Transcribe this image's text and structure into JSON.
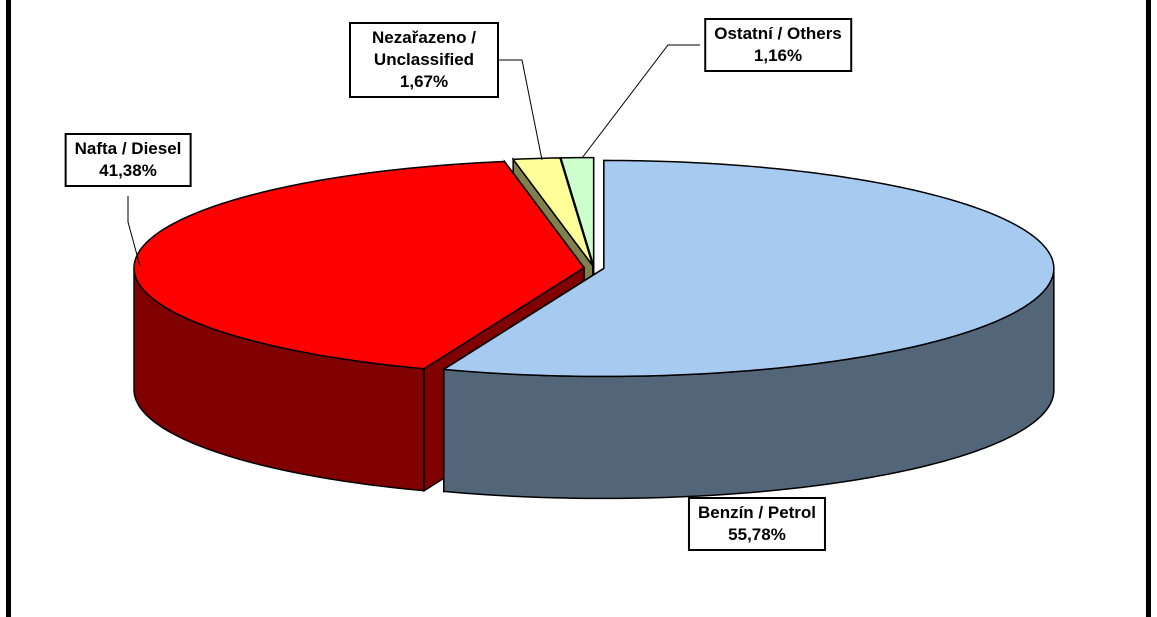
{
  "chart_data": {
    "type": "pie",
    "categories": [
      "Benzín / Petrol",
      "Nafta / Diesel",
      "Nezařazeno / Unclassified",
      "Ostatní / Others"
    ],
    "values": [
      55.78,
      41.38,
      1.67,
      1.16
    ],
    "value_labels": [
      "55,78%",
      "41,38%",
      "1,67%",
      "1,16%"
    ],
    "colors": [
      "#a6caf0",
      "#ff0000",
      "#ffff99",
      "#ccffcc"
    ]
  }
}
